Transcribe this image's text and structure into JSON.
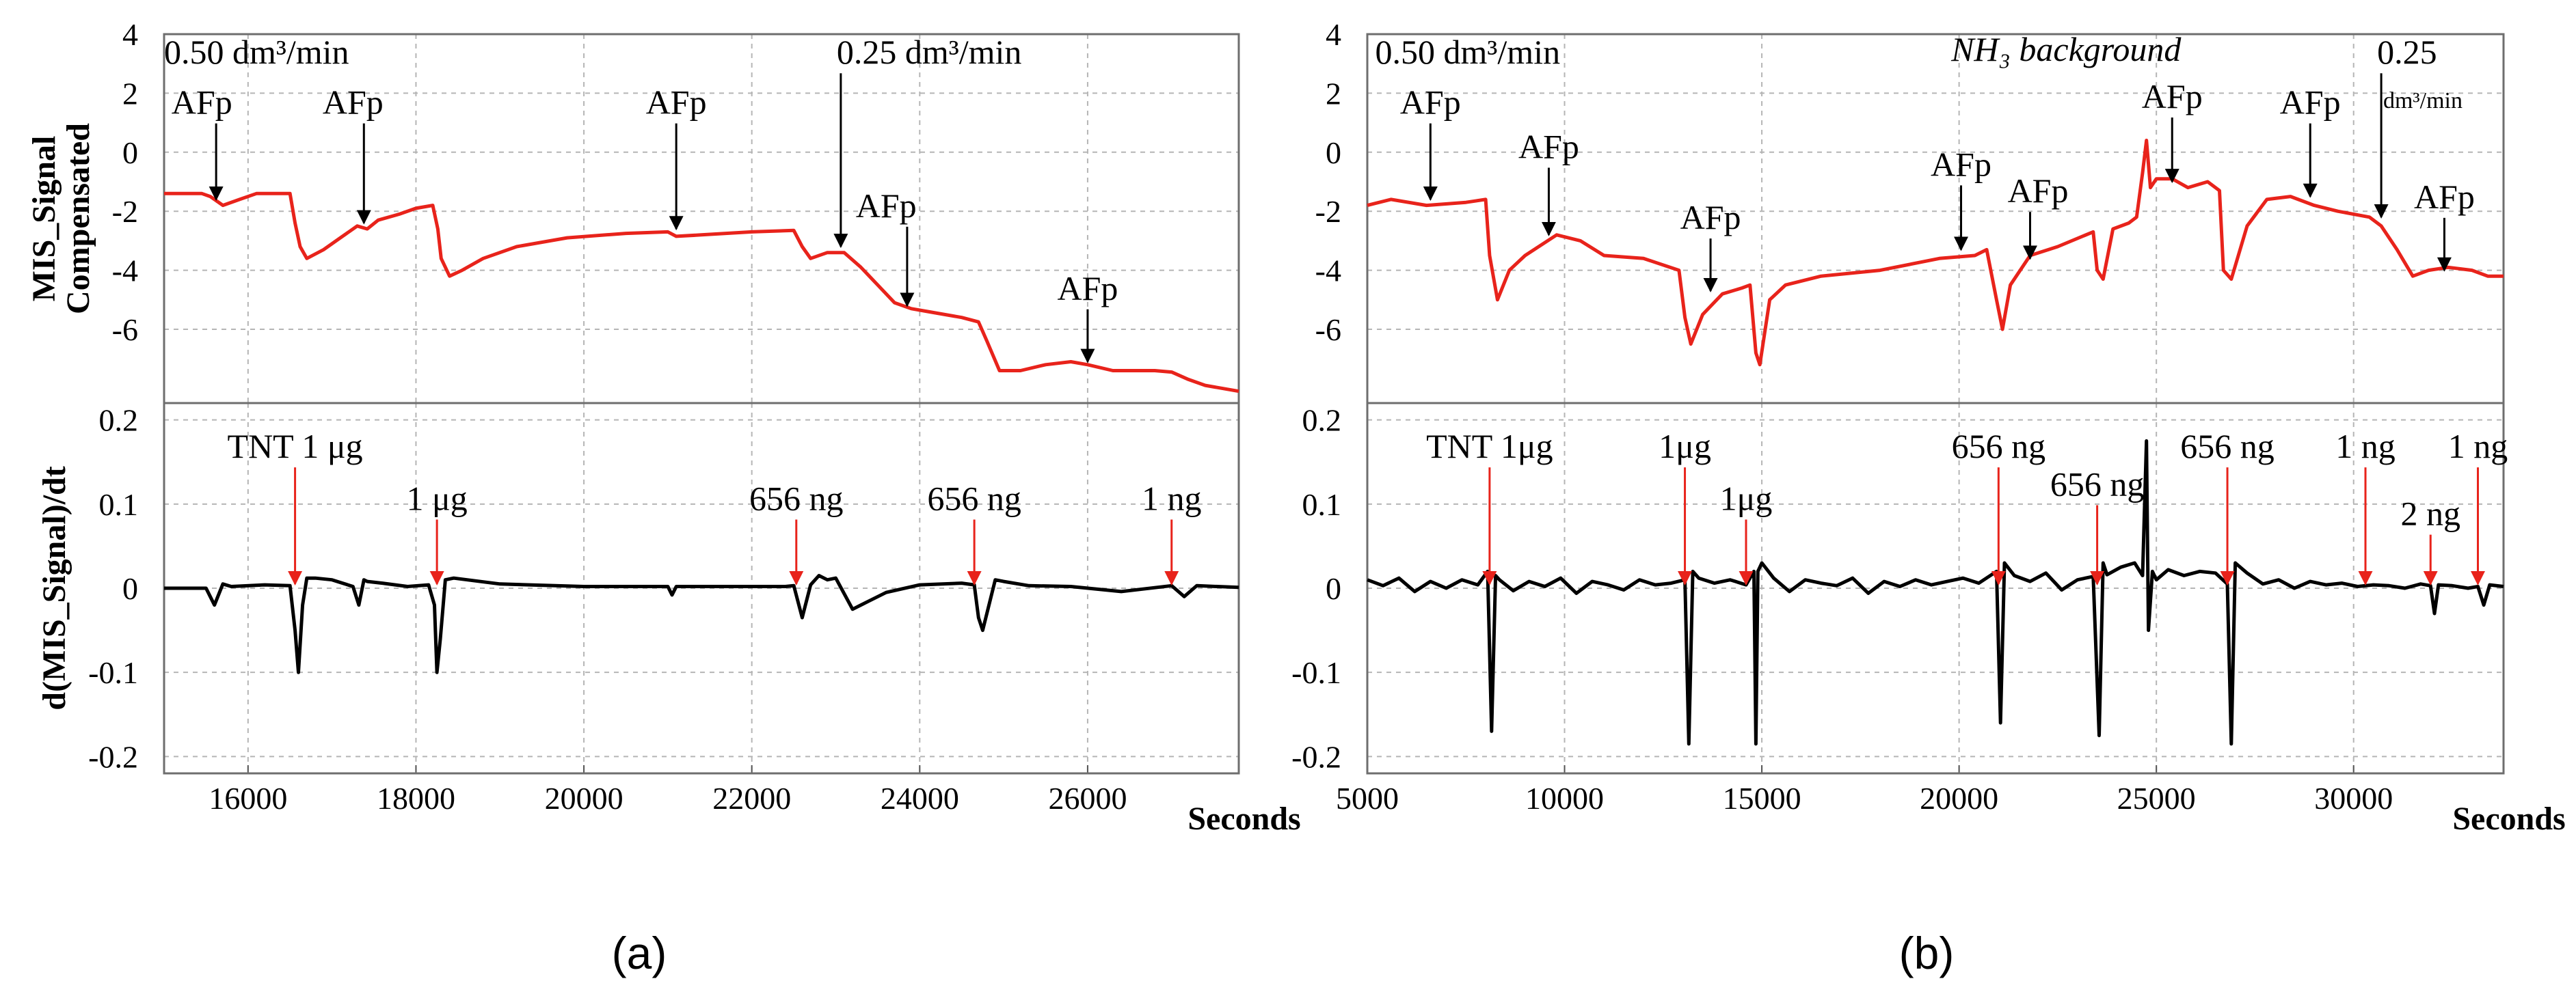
{
  "chart_data": [
    {
      "type": "line",
      "panel": "a",
      "caption": "(a)",
      "xlabel": "Seconds",
      "xlim": [
        15000,
        27800
      ],
      "xticks": [
        16000,
        18000,
        20000,
        22000,
        24000,
        26000
      ],
      "top": {
        "ylabel_line1": "MIS_Signal",
        "ylabel_line2": "Compensated",
        "ylim": [
          -8.5,
          4
        ],
        "yticks": [
          4,
          2,
          0,
          -2,
          -4,
          -6
        ],
        "color": "#e8231b",
        "x": [
          15000,
          15450,
          15550,
          15700,
          15900,
          16100,
          16500,
          16560,
          16620,
          16700,
          16900,
          17100,
          17300,
          17420,
          17550,
          17800,
          18000,
          18200,
          18260,
          18300,
          18400,
          18550,
          18800,
          19200,
          19800,
          20500,
          21000,
          21100,
          21400,
          22000,
          22500,
          22600,
          22700,
          22900,
          23100,
          23300,
          23500,
          23700,
          23900,
          24100,
          24500,
          24700,
          24800,
          24950,
          25200,
          25500,
          25800,
          26000,
          26300,
          26800,
          27000,
          27200,
          27400,
          27800
        ],
        "y": [
          -1.4,
          -1.4,
          -1.5,
          -1.8,
          -1.6,
          -1.4,
          -1.4,
          -2.4,
          -3.2,
          -3.6,
          -3.3,
          -2.9,
          -2.5,
          -2.6,
          -2.3,
          -2.1,
          -1.9,
          -1.8,
          -2.6,
          -3.6,
          -4.2,
          -4.0,
          -3.6,
          -3.2,
          -2.9,
          -2.75,
          -2.7,
          -2.85,
          -2.8,
          -2.7,
          -2.65,
          -3.2,
          -3.6,
          -3.4,
          -3.4,
          -3.9,
          -4.5,
          -5.1,
          -5.3,
          -5.4,
          -5.6,
          -5.75,
          -6.4,
          -7.4,
          -7.4,
          -7.2,
          -7.1,
          -7.2,
          -7.4,
          -7.4,
          -7.45,
          -7.7,
          -7.9,
          -8.1
        ],
        "labels": [
          {
            "text": "0.50 dm³/min",
            "x": 15000,
            "y": 3.0,
            "anchor": "start"
          },
          {
            "text": "AFp",
            "x": 15450,
            "y": 1.3,
            "ax": 15620,
            "ay": -1.6
          },
          {
            "text": "AFp",
            "x": 17250,
            "y": 1.3,
            "ax": 17380,
            "ay": -2.4
          },
          {
            "text": "AFp",
            "x": 21100,
            "y": 1.3,
            "ax": 21100,
            "ay": -2.6
          },
          {
            "text": "0.25 dm³/min",
            "x": 23060,
            "y": 3.0,
            "ax": 23060,
            "ay": -3.2,
            "anchor": "start"
          },
          {
            "text": "AFp",
            "x": 23600,
            "y": -2.2,
            "ax": 23850,
            "ay": -5.2
          },
          {
            "text": "AFp",
            "x": 26000,
            "y": -5.0,
            "ax": 26000,
            "ay": -7.1
          }
        ]
      },
      "bottom": {
        "ylabel": "d(MIS_Signal)/dt",
        "ylim": [
          -0.22,
          0.22
        ],
        "yticks": [
          0.2,
          0.1,
          0,
          -0.1,
          -0.2
        ],
        "ytick_labels": [
          "0.2",
          "0.1",
          "0",
          "-0.1",
          "-0.2"
        ],
        "color": "#000000",
        "x": [
          15000,
          15300,
          15500,
          15600,
          15700,
          15800,
          16200,
          16500,
          16560,
          16600,
          16650,
          16700,
          16800,
          17000,
          17250,
          17320,
          17380,
          17420,
          17600,
          17900,
          18150,
          18220,
          18250,
          18290,
          18350,
          18450,
          19000,
          20000,
          21000,
          21050,
          21100,
          22000,
          22400,
          22500,
          22600,
          22700,
          22800,
          22900,
          23000,
          23200,
          23300,
          23600,
          24000,
          24500,
          24650,
          24700,
          24750,
          24900,
          25000,
          25300,
          25800,
          26400,
          27000,
          27150,
          27300,
          27800
        ],
        "y": [
          0,
          0,
          0,
          -0.02,
          0.005,
          0.002,
          0.004,
          0.003,
          -0.05,
          -0.1,
          -0.02,
          0.012,
          0.012,
          0.01,
          0.002,
          -0.02,
          0.01,
          0.008,
          0.006,
          0.002,
          0.004,
          -0.02,
          -0.1,
          -0.06,
          0.01,
          0.012,
          0.005,
          0.002,
          0.002,
          -0.008,
          0.002,
          0.002,
          0.002,
          0.003,
          -0.035,
          0.004,
          0.015,
          0.01,
          0.012,
          -0.025,
          -0.02,
          -0.005,
          0.004,
          0.006,
          0.004,
          -0.035,
          -0.05,
          0.01,
          0.008,
          0.003,
          0.002,
          -0.004,
          0.003,
          -0.01,
          0.003,
          0.001
        ],
        "labels": [
          {
            "text": "TNT 1 μg",
            "x": 16560,
            "y": 0.155,
            "ax": 16560,
            "ay": 0.005
          },
          {
            "text": "1 μg",
            "x": 18250,
            "y": 0.093,
            "ax": 18250,
            "ay": 0.005
          },
          {
            "text": "656 ng",
            "x": 22530,
            "y": 0.093,
            "ax": 22530,
            "ay": 0.005
          },
          {
            "text": "656 ng",
            "x": 24650,
            "y": 0.093,
            "ax": 24650,
            "ay": 0.005
          },
          {
            "text": "1 ng",
            "x": 27000,
            "y": 0.093,
            "ax": 27000,
            "ay": 0.005
          }
        ]
      }
    },
    {
      "type": "line",
      "panel": "b",
      "caption": "(b)",
      "xlabel": "Seconds",
      "xlim": [
        5000,
        33800
      ],
      "xticks": [
        5000,
        10000,
        15000,
        20000,
        25000,
        30000
      ],
      "top": {
        "ylabel_line1": "",
        "ylabel_line2": "",
        "ylim": [
          -8.5,
          4
        ],
        "yticks": [
          4,
          2,
          0,
          -2,
          -4,
          -6
        ],
        "color": "#e8231b",
        "x": [
          5000,
          5600,
          6500,
          7500,
          8000,
          8100,
          8300,
          8600,
          9000,
          9800,
          10400,
          11000,
          12000,
          12900,
          13050,
          13200,
          13500,
          14000,
          14500,
          14700,
          14850,
          14950,
          15200,
          15600,
          16500,
          18000,
          19500,
          20400,
          20700,
          20950,
          21100,
          21300,
          21800,
          22500,
          23400,
          23500,
          23650,
          23900,
          24300,
          24500,
          24650,
          24750,
          24850,
          25000,
          25400,
          25800,
          26300,
          26600,
          26700,
          26900,
          27300,
          27800,
          28400,
          29000,
          29600,
          30400,
          30700,
          31100,
          31500,
          31900,
          32400,
          33000,
          33400,
          33800
        ],
        "y": [
          -1.8,
          -1.6,
          -1.8,
          -1.7,
          -1.6,
          -3.5,
          -5.0,
          -4.0,
          -3.5,
          -2.8,
          -3.0,
          -3.5,
          -3.6,
          -4.0,
          -5.6,
          -6.5,
          -5.5,
          -4.8,
          -4.6,
          -4.5,
          -6.8,
          -7.2,
          -5.0,
          -4.5,
          -4.2,
          -4.0,
          -3.6,
          -3.5,
          -3.3,
          -5.0,
          -6.0,
          -4.5,
          -3.5,
          -3.2,
          -2.7,
          -4.0,
          -4.3,
          -2.6,
          -2.4,
          -2.2,
          -0.7,
          0.4,
          -1.2,
          -0.9,
          -0.9,
          -1.2,
          -1.0,
          -1.3,
          -4.0,
          -4.3,
          -2.5,
          -1.6,
          -1.5,
          -1.8,
          -2.0,
          -2.2,
          -2.5,
          -3.3,
          -4.2,
          -4.0,
          -3.9,
          -4.0,
          -4.2,
          -4.2
        ],
        "labels": [
          {
            "text": "0.50 dm³/min",
            "x": 5200,
            "y": 3.0,
            "anchor": "start"
          },
          {
            "text": "NH₃ background",
            "x": 19800,
            "y": 3.1,
            "anchor": "start",
            "italic": true
          },
          {
            "text": "AFp",
            "x": 6600,
            "y": 1.3,
            "ax": 6600,
            "ay": -1.6
          },
          {
            "text": "AFp",
            "x": 9600,
            "y": -0.2,
            "ax": 9600,
            "ay": -2.8
          },
          {
            "text": "AFp",
            "x": 13700,
            "y": -2.6,
            "ax": 13700,
            "ay": -4.7
          },
          {
            "text": "AFp",
            "x": 20050,
            "y": -0.8,
            "ax": 20050,
            "ay": -3.3
          },
          {
            "text": "AFp",
            "x": 22000,
            "y": -1.7,
            "ax": 21800,
            "ay": -3.6
          },
          {
            "text": "AFp",
            "x": 25400,
            "y": 1.5,
            "ax": 25400,
            "ay": -1.0
          },
          {
            "text": "AFp",
            "x": 28900,
            "y": 1.3,
            "ax": 28900,
            "ay": -1.5
          },
          {
            "text": "0.25",
            "x": 30700,
            "y": 3.0,
            "ax": 30700,
            "ay": -2.2,
            "anchor": "start"
          },
          {
            "text": "dm³/min",
            "x": 30750,
            "y": 1.5,
            "anchor": "start",
            "small": true
          },
          {
            "text": "AFp",
            "x": 32300,
            "y": -1.9,
            "ax": 32300,
            "ay": -4.0
          }
        ]
      },
      "bottom": {
        "ylabel": "",
        "ylim": [
          -0.22,
          0.22
        ],
        "yticks": [
          0.2,
          0.1,
          0,
          -0.1,
          -0.2
        ],
        "ytick_labels": [
          "0.2",
          "0.1",
          "0",
          "-0.1",
          "-0.2"
        ],
        "color": "#000000",
        "x": [
          5000,
          5400,
          5800,
          6200,
          6600,
          7000,
          7400,
          7800,
          8050,
          8150,
          8250,
          8350,
          8700,
          9100,
          9500,
          9900,
          10300,
          10700,
          11100,
          11500,
          11900,
          12300,
          12700,
          13050,
          13150,
          13250,
          13400,
          13800,
          14200,
          14600,
          14800,
          14850,
          14900,
          15000,
          15300,
          15700,
          16100,
          16500,
          16900,
          17300,
          17700,
          18100,
          18500,
          18900,
          19300,
          19700,
          20100,
          20500,
          20950,
          21050,
          21150,
          21400,
          21800,
          22200,
          22600,
          23000,
          23400,
          23550,
          23650,
          23750,
          24100,
          24450,
          24650,
          24750,
          24800,
          24900,
          25000,
          25300,
          25700,
          26100,
          26500,
          26800,
          26900,
          27000,
          27300,
          27700,
          28100,
          28500,
          28900,
          29300,
          29700,
          30100,
          30500,
          30900,
          31300,
          31700,
          31950,
          32050,
          32150,
          32500,
          32900,
          33150,
          33300,
          33450,
          33800
        ],
        "y": [
          0.01,
          0.003,
          0.012,
          -0.004,
          0.008,
          0.0,
          0.01,
          0.004,
          0.02,
          -0.17,
          0.015,
          0.01,
          -0.003,
          0.008,
          0.002,
          0.012,
          -0.006,
          0.008,
          0.004,
          -0.002,
          0.01,
          0.004,
          0.006,
          0.01,
          -0.185,
          0.02,
          0.012,
          0.006,
          0.01,
          0.004,
          0.02,
          -0.185,
          0.02,
          0.03,
          0.012,
          -0.004,
          0.01,
          0.006,
          0.003,
          0.012,
          -0.006,
          0.008,
          0.002,
          0.01,
          0.004,
          0.008,
          0.012,
          0.006,
          0.02,
          -0.16,
          0.03,
          0.015,
          0.008,
          0.018,
          -0.002,
          0.01,
          0.014,
          -0.175,
          0.03,
          0.016,
          0.025,
          0.03,
          0.015,
          0.175,
          -0.05,
          0.02,
          0.01,
          0.022,
          0.015,
          0.02,
          0.018,
          0.005,
          -0.185,
          0.03,
          0.018,
          0.005,
          0.01,
          0.0,
          0.008,
          0.004,
          0.006,
          0.002,
          0.004,
          0.003,
          0.0,
          0.005,
          0.003,
          -0.03,
          0.004,
          0.003,
          0.0,
          0.002,
          -0.02,
          0.004,
          0.002
        ],
        "labels": [
          {
            "text": "TNT 1μg",
            "x": 8100,
            "y": 0.155,
            "ax": 8100,
            "ay": 0.005
          },
          {
            "text": "1μg",
            "x": 13050,
            "y": 0.155,
            "ax": 13050,
            "ay": 0.005
          },
          {
            "text": "1μg",
            "x": 14600,
            "y": 0.093,
            "ax": 14600,
            "ay": 0.005
          },
          {
            "text": "656 ng",
            "x": 21000,
            "y": 0.155,
            "ax": 21000,
            "ay": 0.005
          },
          {
            "text": "656 ng",
            "x": 23500,
            "y": 0.11,
            "ax": 23500,
            "ay": 0.005
          },
          {
            "text": "656 ng",
            "x": 26800,
            "y": 0.155,
            "ax": 26800,
            "ay": 0.005
          },
          {
            "text": "1 ng",
            "x": 30300,
            "y": 0.155,
            "ax": 30300,
            "ay": 0.005
          },
          {
            "text": "2 ng",
            "x": 31950,
            "y": 0.075,
            "ax": 31950,
            "ay": 0.005
          },
          {
            "text": "1 ng",
            "x": 33150,
            "y": 0.155,
            "ax": 33150,
            "ay": 0.005
          }
        ]
      }
    }
  ]
}
